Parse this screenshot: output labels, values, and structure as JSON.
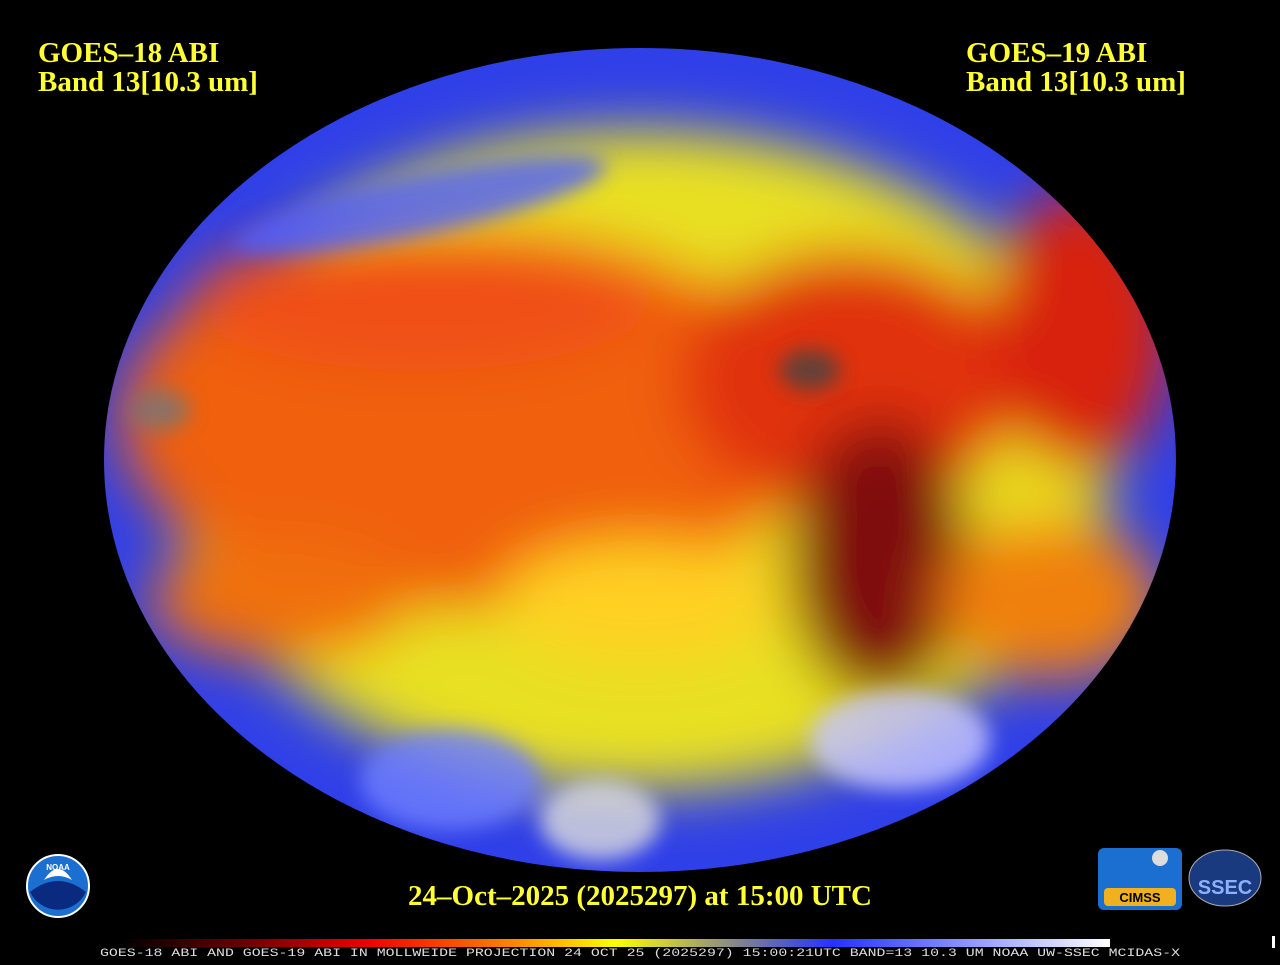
{
  "header": {
    "left": {
      "satellite": "GOES–18 ABI",
      "band": "Band 13[10.3 um]"
    },
    "right": {
      "satellite": "GOES–19 ABI",
      "band": "Band 13[10.3 um]"
    }
  },
  "timestamp": "24–Oct–2025 (2025297) at 15:00 UTC",
  "footer": "GOES-18 ABI AND GOES-19 ABI IN MOLLWEIDE PROJECTION 24 OCT 25 (2025297) 15:00:21UTC BAND=13 10.3 UM NOAA UW-SSEC MCIDAS-X",
  "logos": {
    "noaa": "NOAA",
    "cimss": "CIMSS",
    "ssec": "SSEC"
  }
}
